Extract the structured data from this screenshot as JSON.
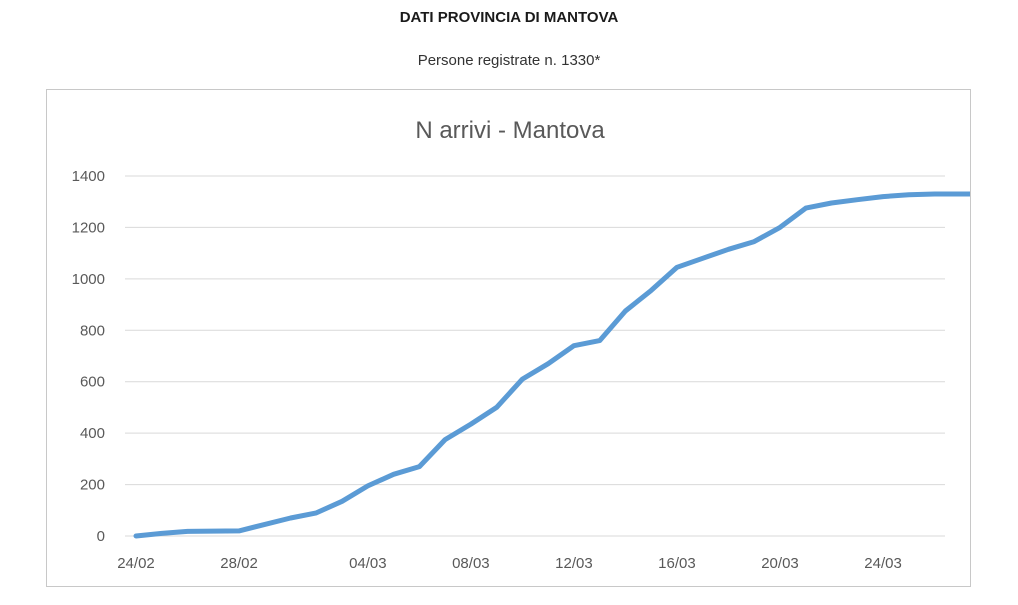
{
  "header": {
    "title": "DATI PROVINCIA DI MANTOVA",
    "subtitle": "Persone registrate n. 1330*"
  },
  "chart_data": {
    "type": "line",
    "title": "N arrivi - Mantova",
    "xlabel": "",
    "ylabel": "",
    "ylim": [
      0,
      1400
    ],
    "yticks": [
      "0",
      "200",
      "400",
      "600",
      "800",
      "1000",
      "1200",
      "1400"
    ],
    "xtick_labels": [
      "24/02",
      "28/02",
      "04/03",
      "08/03",
      "12/03",
      "16/03",
      "20/03",
      "24/03"
    ],
    "grid": true,
    "legend": "none",
    "series_color": "#5b9bd5",
    "x": [
      "24/02",
      "25/02",
      "26/02",
      "27/02",
      "28/02",
      "29/02",
      "01/03",
      "02/03",
      "03/03",
      "04/03",
      "05/03",
      "06/03",
      "07/03",
      "08/03",
      "09/03",
      "10/03",
      "11/03",
      "12/03",
      "13/03",
      "14/03",
      "15/03",
      "16/03",
      "17/03",
      "18/03",
      "19/03",
      "20/03",
      "21/03",
      "22/03",
      "23/03",
      "24/03",
      "25/03",
      "26/03",
      "27/03",
      "28/03"
    ],
    "series": [
      {
        "values": [
          0,
          10,
          18,
          19,
          20,
          45,
          70,
          90,
          135,
          195,
          240,
          270,
          375,
          435,
          500,
          610,
          670,
          740,
          760,
          875,
          955,
          1045,
          1080,
          1115,
          1145,
          1200,
          1275,
          1295,
          1308,
          1320,
          1327,
          1330,
          1330,
          1330
        ]
      }
    ]
  }
}
